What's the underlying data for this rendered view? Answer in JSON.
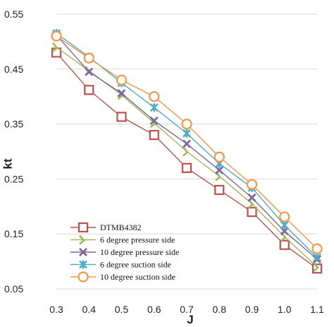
{
  "chart_data": {
    "type": "line",
    "title": "",
    "xlabel": "J",
    "ylabel": "kt",
    "xlim": [
      0.3,
      1.1
    ],
    "ylim": [
      0.05,
      0.55
    ],
    "x_ticks": [
      "0.3",
      "0.4",
      "0.5",
      "0.6",
      "0.7",
      "0.8",
      "0.9",
      "1.0",
      "1.1"
    ],
    "y_ticks": [
      "0.05",
      "0.15",
      "0.25",
      "0.35",
      "0.45",
      "0.55"
    ],
    "grid": "horizontal",
    "legend_position": "bottom-left",
    "x": [
      0.3,
      0.4,
      0.5,
      0.6,
      0.7,
      0.8,
      0.9,
      1.0,
      1.1
    ],
    "series": [
      {
        "name": "DTMB4382",
        "marker": "square",
        "color": "#c0504d",
        "values": [
          0.48,
          0.412,
          0.363,
          0.33,
          0.27,
          0.23,
          0.19,
          0.13,
          0.087
        ]
      },
      {
        "name": "6 degree pressure side",
        "marker": "triangle",
        "color": "#9bbb59",
        "values": [
          0.49,
          0.447,
          0.403,
          0.352,
          0.3,
          0.255,
          0.205,
          0.145,
          0.09
        ]
      },
      {
        "name": "10 degree pressure side",
        "marker": "x",
        "color": "#8064a2",
        "values": [
          0.512,
          0.445,
          0.406,
          0.356,
          0.314,
          0.266,
          0.216,
          0.155,
          0.104
        ]
      },
      {
        "name": "6 degree suction side",
        "marker": "star",
        "color": "#4bacc6",
        "values": [
          0.515,
          0.472,
          0.425,
          0.38,
          0.333,
          0.278,
          0.234,
          0.166,
          0.107
        ]
      },
      {
        "name": "10 degree suction side",
        "marker": "circle",
        "color": "#f79646",
        "values": [
          0.51,
          0.47,
          0.43,
          0.4,
          0.35,
          0.29,
          0.24,
          0.181,
          0.123
        ]
      }
    ]
  }
}
